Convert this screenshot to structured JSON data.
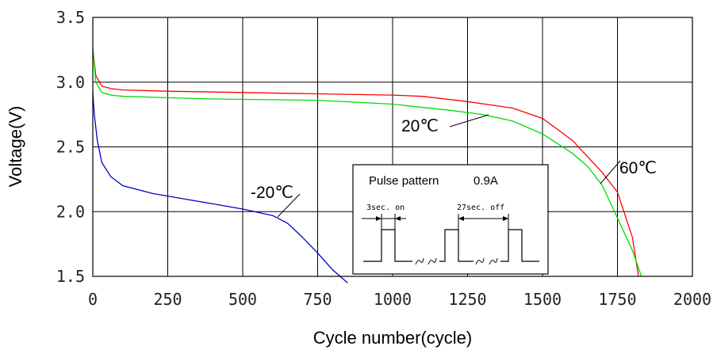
{
  "chart_data": {
    "type": "line",
    "xlabel": "Cycle number(cycle)",
    "ylabel": "Voltage(V)",
    "xlim": [
      0,
      2000
    ],
    "ylim": [
      1.5,
      3.5
    ],
    "xticks": [
      "0",
      "250",
      "500",
      "750",
      "1000",
      "1250",
      "1500",
      "1750",
      "2000"
    ],
    "yticks": [
      "1.5",
      "2.0",
      "2.5",
      "3.0",
      "3.5"
    ],
    "grid": true,
    "series": [
      {
        "name": "60℃",
        "color": "#ff0000",
        "x": [
          0,
          10,
          30,
          60,
          100,
          250,
          500,
          750,
          1000,
          1100,
          1250,
          1400,
          1500,
          1600,
          1700,
          1750,
          1800,
          1820
        ],
        "y": [
          3.26,
          3.05,
          2.97,
          2.95,
          2.94,
          2.93,
          2.92,
          2.91,
          2.9,
          2.89,
          2.85,
          2.8,
          2.72,
          2.55,
          2.3,
          2.15,
          1.8,
          1.5
        ]
      },
      {
        "name": "20℃",
        "color": "#00dd00",
        "x": [
          0,
          10,
          30,
          60,
          100,
          250,
          400,
          750,
          1000,
          1200,
          1300,
          1400,
          1500,
          1600,
          1650,
          1700,
          1750,
          1800,
          1830
        ],
        "y": [
          3.26,
          3.0,
          2.92,
          2.9,
          2.89,
          2.88,
          2.87,
          2.86,
          2.83,
          2.78,
          2.75,
          2.7,
          2.6,
          2.45,
          2.35,
          2.2,
          1.95,
          1.7,
          1.5
        ]
      },
      {
        "name": "-20℃",
        "color": "#0000cc",
        "x": [
          0,
          5,
          15,
          30,
          60,
          100,
          200,
          400,
          500,
          600,
          650,
          700,
          750,
          800,
          850
        ],
        "y": [
          2.92,
          2.75,
          2.55,
          2.38,
          2.27,
          2.2,
          2.14,
          2.06,
          2.02,
          1.97,
          1.91,
          1.8,
          1.68,
          1.55,
          1.45
        ]
      }
    ],
    "annotations": {
      "label_60": "60℃",
      "label_20": "20℃",
      "label_m20": "-20℃",
      "inset_title": "Pulse pattern",
      "inset_current": "0.9A",
      "inset_on": "3sec. on",
      "inset_off": "27sec. off"
    }
  }
}
